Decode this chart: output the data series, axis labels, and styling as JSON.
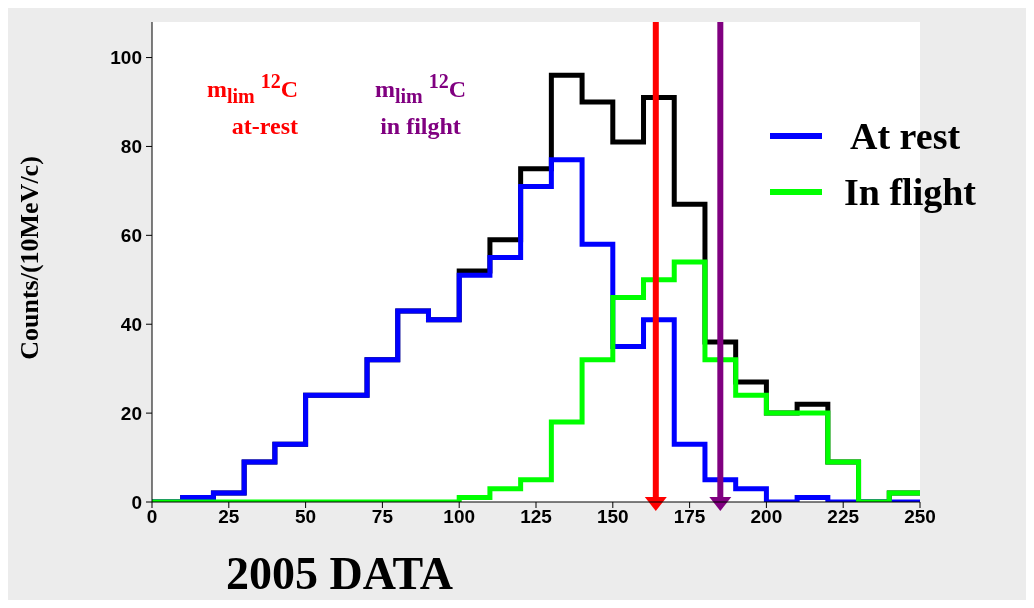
{
  "chart_data": {
    "type": "histogram",
    "title": "2005 DATA",
    "ylabel": "Counts/(10MeV/c)",
    "bins": [
      0,
      10,
      20,
      30,
      40,
      50,
      60,
      70,
      80,
      90,
      100,
      110,
      120,
      130,
      140,
      150,
      160,
      170,
      180,
      190,
      200,
      210,
      220,
      230,
      240,
      250
    ],
    "series": [
      {
        "color": "#000000",
        "values": [
          0,
          1,
          2,
          9,
          13,
          24,
          24,
          32,
          43,
          41,
          52,
          59,
          75,
          96,
          90,
          81,
          91,
          67,
          36,
          27,
          20,
          22,
          9,
          0,
          2
        ]
      },
      {
        "name": "At rest",
        "color": "#0000ff",
        "values": [
          0,
          1,
          2,
          9,
          13,
          24,
          24,
          32,
          43,
          41,
          51,
          55,
          71,
          77,
          58,
          35,
          41,
          13,
          5,
          3,
          0,
          1,
          0,
          0,
          0
        ]
      },
      {
        "name": "In flight",
        "color": "#00ff00",
        "values": [
          0,
          0,
          0,
          0,
          0,
          0,
          0,
          0,
          0,
          0,
          1,
          3,
          5,
          18,
          32,
          46,
          50,
          54,
          32,
          24,
          20,
          20,
          9,
          0,
          2
        ]
      }
    ],
    "xlim": [
      0,
      250
    ],
    "xticks": [
      0,
      25,
      50,
      75,
      100,
      125,
      150,
      175,
      200,
      225,
      250
    ],
    "ylim": [
      0,
      108
    ],
    "yticks": [
      0,
      20,
      40,
      60,
      80,
      100
    ],
    "ref_lines": [
      {
        "axis": "x",
        "value": 164,
        "label": "m$_{lim}$ $^{12}$C at-rest",
        "color": "#ff0000"
      },
      {
        "axis": "x",
        "value": 185,
        "label": "m$_{lim}$ $^{12}$C in filght",
        "color": "#800080"
      }
    ],
    "legend": "right"
  }
}
